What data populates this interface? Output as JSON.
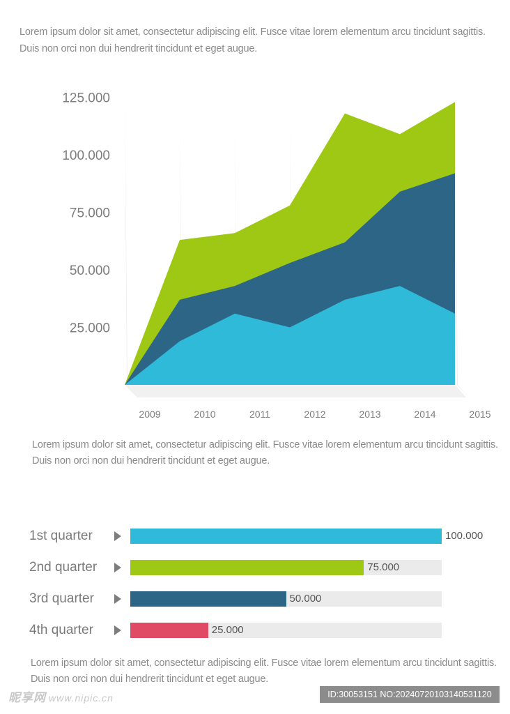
{
  "paragraphs": {
    "top": "Lorem ipsum dolor sit amet, consectetur adipiscing elit. Fusce vitae lorem elementum arcu tincidunt sagittis. Duis non orci non dui hendrerit tincidunt et eget augue.",
    "middle": "Lorem ipsum dolor sit amet, consectetur adipiscing elit. Fusce vitae lorem elementum arcu tincidunt sagittis. Duis non orci non dui hendrerit tincidunt et eget augue.",
    "bottom": "Lorem ipsum dolor sit amet, consectetur adipiscing elit. Fusce vitae lorem elementum arcu tincidunt sagittis. Duis non orci non dui hendrerit tincidunt et eget augue."
  },
  "chart_data": [
    {
      "type": "area",
      "stacked": true,
      "x": [
        "2009",
        "2010",
        "2011",
        "2012",
        "2013",
        "2014",
        "2015"
      ],
      "yticks": [
        "25.000",
        "50.000",
        "75.000",
        "100.000",
        "125.000"
      ],
      "ytick_values": [
        25000,
        50000,
        75000,
        100000,
        125000
      ],
      "ylim": [
        0,
        137000
      ],
      "grid": false,
      "legend": "none",
      "series": [
        {
          "color": "#2fbad9",
          "values": [
            0,
            19000,
            31000,
            25000,
            37000,
            43000,
            31000
          ]
        },
        {
          "color": "#2d6586",
          "values": [
            0,
            18000,
            12000,
            28000,
            25000,
            41000,
            61000
          ]
        },
        {
          "color": "#9ec814",
          "values": [
            0,
            26000,
            23000,
            25000,
            56000,
            25000,
            31000
          ]
        }
      ],
      "cumulative_tops": [
        0,
        63000,
        66000,
        78000,
        118000,
        109000,
        123000
      ]
    },
    {
      "type": "bar",
      "orientation": "horizontal",
      "categories": [
        "1st quarter",
        "2nd quarter",
        "3rd quarter",
        "4th quarter"
      ],
      "values": [
        100000,
        75000,
        50000,
        25000
      ],
      "value_labels": [
        "100.000",
        "75.000",
        "50.000",
        "25.000"
      ],
      "colors": [
        "#2fbad9",
        "#9ec814",
        "#2d6586",
        "#e04a65"
      ],
      "xlim": [
        0,
        100000
      ],
      "track_color": "#ebebeb"
    }
  ],
  "footer": {
    "watermark": "昵享网",
    "watermark_url": "www.nipic.cn",
    "id_text": "ID:30053151 NO:20240720103140531120"
  }
}
